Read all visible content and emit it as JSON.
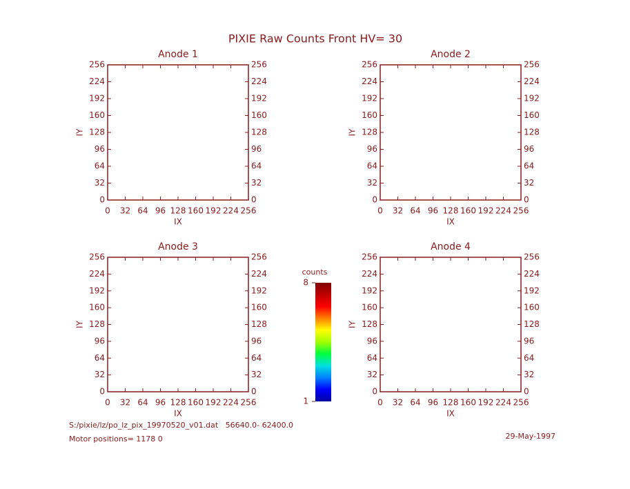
{
  "title": "PIXIE Raw Counts Front HV= 30",
  "chart_data": [
    {
      "type": "heatmap",
      "title": "Anode 1",
      "xlabel": "IX",
      "ylabel": "IY",
      "xlim": [
        0,
        256
      ],
      "xticks": [
        0,
        32,
        64,
        96,
        128,
        160,
        192,
        224,
        256
      ],
      "ylim": [
        0,
        256
      ],
      "yticks": [
        0,
        32,
        64,
        96,
        128,
        160,
        192,
        224,
        256
      ],
      "y2lim": [
        0,
        256
      ],
      "y2ticks": [
        0,
        32,
        64,
        96,
        128,
        160,
        192,
        224,
        256
      ],
      "color": "#8b1a1a"
    },
    {
      "type": "heatmap",
      "title": "Anode 2",
      "xlabel": "IX",
      "ylabel": "IY",
      "xlim": [
        0,
        256
      ],
      "xticks": [
        0,
        32,
        64,
        96,
        128,
        160,
        192,
        224,
        256
      ],
      "ylim": [
        0,
        256
      ],
      "yticks": [
        0,
        32,
        64,
        96,
        128,
        160,
        192,
        224,
        256
      ],
      "y2lim": [
        0,
        256
      ],
      "y2ticks": [
        0,
        32,
        64,
        96,
        128,
        160,
        192,
        224,
        256
      ],
      "color": "#8b1a1a"
    },
    {
      "type": "heatmap",
      "title": "Anode 3",
      "xlabel": "IX",
      "ylabel": "IY",
      "xlim": [
        0,
        256
      ],
      "xticks": [
        0,
        32,
        64,
        96,
        128,
        160,
        192,
        224,
        256
      ],
      "ylim": [
        0,
        256
      ],
      "yticks": [
        0,
        32,
        64,
        96,
        128,
        160,
        192,
        224,
        256
      ],
      "y2lim": [
        0,
        256
      ],
      "y2ticks": [
        0,
        32,
        64,
        96,
        128,
        160,
        192,
        224,
        256
      ],
      "color": "#8b1a1a"
    },
    {
      "type": "heatmap",
      "title": "Anode 4",
      "xlabel": "IX",
      "ylabel": "IY",
      "xlim": [
        0,
        256
      ],
      "xticks": [
        0,
        32,
        64,
        96,
        128,
        160,
        192,
        224,
        256
      ],
      "ylim": [
        0,
        256
      ],
      "yticks": [
        0,
        32,
        64,
        96,
        128,
        160,
        192,
        224,
        256
      ],
      "y2lim": [
        0,
        256
      ],
      "y2ticks": [
        0,
        32,
        64,
        96,
        128,
        160,
        192,
        224,
        256
      ],
      "color": "#8b1a1a"
    }
  ],
  "colorbar": {
    "label": "counts",
    "lim": [
      1,
      8
    ],
    "ticks": [
      1,
      8
    ],
    "colormap": [
      "#0000a0",
      "#0000ff",
      "#0080ff",
      "#00e0e0",
      "#00ff40",
      "#a0ff00",
      "#ffff00",
      "#ff8000",
      "#ff0000",
      "#c00000",
      "#800000"
    ]
  },
  "footer": {
    "file": "S:/pixie/lz/po_lz_pix_19970520_v01.dat   56640.0- 62400.0",
    "motor": "Motor positions= 1178 0",
    "date": "29-May-1997"
  }
}
